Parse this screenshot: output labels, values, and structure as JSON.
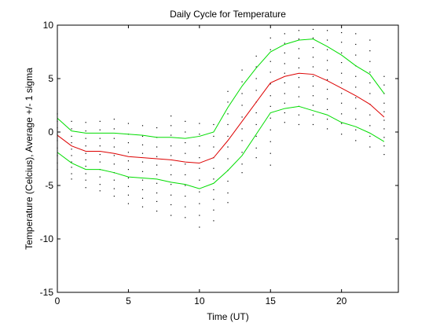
{
  "chart_data": {
    "type": "line",
    "title": "Daily Cycle for Temperature",
    "xlabel": "Time (UT)",
    "ylabel": "Temperature (Celcius), Average +/- 1 sigma",
    "xlim": [
      0,
      24
    ],
    "ylim": [
      -15,
      10
    ],
    "x_ticks": [
      0,
      5,
      10,
      15,
      20
    ],
    "y_ticks": [
      -15,
      -10,
      -5,
      0,
      5,
      10
    ],
    "grid": false,
    "legend": "none",
    "x": [
      0,
      1,
      2,
      3,
      4,
      5,
      6,
      7,
      8,
      9,
      10,
      11,
      12,
      13,
      14,
      15,
      16,
      17,
      18,
      19,
      20,
      21,
      22,
      23
    ],
    "series": [
      {
        "role": "upper",
        "color": "#00dd00",
        "values": [
          1.3,
          0.1,
          -0.1,
          -0.1,
          -0.1,
          -0.2,
          -0.3,
          -0.5,
          -0.5,
          -0.6,
          -0.4,
          0.0,
          2.3,
          4.3,
          6.0,
          7.5,
          8.2,
          8.6,
          8.7,
          8.0,
          7.2,
          6.2,
          5.4,
          3.6
        ]
      },
      {
        "role": "average",
        "color": "#dd0000",
        "values": [
          -0.3,
          -1.3,
          -1.8,
          -1.8,
          -2.0,
          -2.3,
          -2.4,
          -2.5,
          -2.6,
          -2.8,
          -2.9,
          -2.4,
          -0.8,
          1.0,
          2.8,
          4.6,
          5.2,
          5.5,
          5.4,
          4.8,
          4.1,
          3.4,
          2.6,
          1.4
        ]
      },
      {
        "role": "lower",
        "color": "#00dd00",
        "values": [
          -1.9,
          -2.9,
          -3.5,
          -3.5,
          -3.8,
          -4.2,
          -4.3,
          -4.4,
          -4.7,
          -4.9,
          -5.3,
          -4.8,
          -3.6,
          -2.2,
          -0.2,
          1.8,
          2.2,
          2.4,
          2.0,
          1.6,
          0.9,
          0.5,
          -0.1,
          -0.9
        ]
      }
    ],
    "scatter_color": "#000000",
    "scatter": [
      {
        "x": 0,
        "y": [
          1.7,
          1.0,
          0.4,
          -0.2,
          -0.8,
          -1.5,
          -2.2,
          -2.9,
          -3.5
        ]
      },
      {
        "x": 1,
        "y": [
          1.0,
          0.3,
          -0.4,
          -1.0,
          -1.6,
          -2.2,
          -2.8,
          -3.3,
          -3.9,
          -4.4
        ]
      },
      {
        "x": 2,
        "y": [
          0.9,
          0.1,
          -0.6,
          -1.3,
          -2.0,
          -2.6,
          -3.2,
          -3.9,
          -4.5,
          -5.2
        ]
      },
      {
        "x": 3,
        "y": [
          1.0,
          0.2,
          -0.6,
          -1.3,
          -2.1,
          -2.8,
          -3.5,
          -4.2,
          -4.9,
          -5.5
        ]
      },
      {
        "x": 4,
        "y": [
          1.2,
          0.3,
          -0.6,
          -1.4,
          -2.2,
          -3.0,
          -3.8,
          -4.5,
          -5.3,
          -6.0
        ]
      },
      {
        "x": 5,
        "y": [
          0.8,
          -0.2,
          -1.0,
          -1.9,
          -2.7,
          -3.5,
          -4.3,
          -5.1,
          -5.9,
          -6.7
        ]
      },
      {
        "x": 6,
        "y": [
          0.6,
          -0.4,
          -1.2,
          -2.0,
          -2.8,
          -3.7,
          -4.5,
          -5.4,
          -6.2,
          -7.0
        ]
      },
      {
        "x": 7,
        "y": [
          0.4,
          -0.5,
          -1.4,
          -2.3,
          -3.1,
          -4.0,
          -4.8,
          -5.7,
          -6.5,
          -7.4
        ]
      },
      {
        "x": 8,
        "y": [
          1.5,
          0.6,
          -0.3,
          -1.3,
          -2.2,
          -3.1,
          -4.0,
          -4.9,
          -5.9,
          -6.8,
          -7.8
        ]
      },
      {
        "x": 9,
        "y": [
          1.0,
          0.0,
          -1.0,
          -2.0,
          -3.0,
          -4.0,
          -5.0,
          -6.0,
          -7.0,
          -8.0
        ]
      },
      {
        "x": 10,
        "y": [
          0.8,
          -0.2,
          -1.3,
          -2.4,
          -3.4,
          -4.5,
          -5.6,
          -6.7,
          -7.8,
          -8.9
        ]
      },
      {
        "x": 11,
        "y": [
          0.7,
          -0.4,
          -1.4,
          -2.4,
          -3.4,
          -4.4,
          -5.4,
          -6.3,
          -7.3,
          -8.3
        ]
      },
      {
        "x": 12,
        "y": [
          3.8,
          2.8,
          1.7,
          0.7,
          -0.4,
          -1.4,
          -2.5,
          -3.6,
          -4.6,
          -5.7,
          -6.6
        ]
      },
      {
        "x": 13,
        "y": [
          5.8,
          4.7,
          3.6,
          2.5,
          1.4,
          0.3,
          -0.8,
          -1.9,
          -3.0,
          -3.8
        ]
      },
      {
        "x": 14,
        "y": [
          7.1,
          6.1,
          5.0,
          3.9,
          2.8,
          1.8,
          0.7,
          -0.4,
          -1.5,
          -2.4
        ]
      },
      {
        "x": 15,
        "y": [
          8.8,
          7.7,
          6.6,
          5.6,
          4.5,
          3.4,
          2.4,
          1.3,
          0.2,
          -0.9,
          -2.0,
          -3.1
        ]
      },
      {
        "x": 16,
        "y": [
          9.2,
          8.3,
          7.4,
          6.4,
          5.5,
          4.6,
          3.6,
          2.7,
          1.8,
          0.9
        ]
      },
      {
        "x": 17,
        "y": [
          9.5,
          8.7,
          7.8,
          6.9,
          6.0,
          5.1,
          4.2,
          3.3,
          2.4,
          1.6,
          0.7
        ]
      },
      {
        "x": 18,
        "y": [
          9.6,
          8.8,
          7.9,
          7.0,
          6.1,
          5.2,
          4.3,
          3.4,
          2.5,
          1.6,
          0.7
        ]
      },
      {
        "x": 19,
        "y": [
          9.5,
          8.6,
          7.7,
          6.7,
          5.8,
          4.9,
          4.0,
          3.1,
          2.1,
          1.2,
          0.3
        ]
      },
      {
        "x": 20,
        "y": [
          9.3,
          8.4,
          7.4,
          6.5,
          5.5,
          4.6,
          3.6,
          2.7,
          1.7,
          0.8,
          -0.2
        ]
      },
      {
        "x": 21,
        "y": [
          9.2,
          8.2,
          7.2,
          6.2,
          5.2,
          4.2,
          3.2,
          2.2,
          1.2,
          0.2,
          -0.8
        ]
      },
      {
        "x": 22,
        "y": [
          8.6,
          7.6,
          6.6,
          5.6,
          4.6,
          3.6,
          2.6,
          1.6,
          0.6,
          -0.4,
          -1.4
        ]
      },
      {
        "x": 23,
        "y": [
          5.2,
          4.4,
          3.6,
          2.7,
          1.9,
          1.1,
          0.3,
          -0.5,
          -1.3,
          -2.1
        ]
      }
    ]
  }
}
